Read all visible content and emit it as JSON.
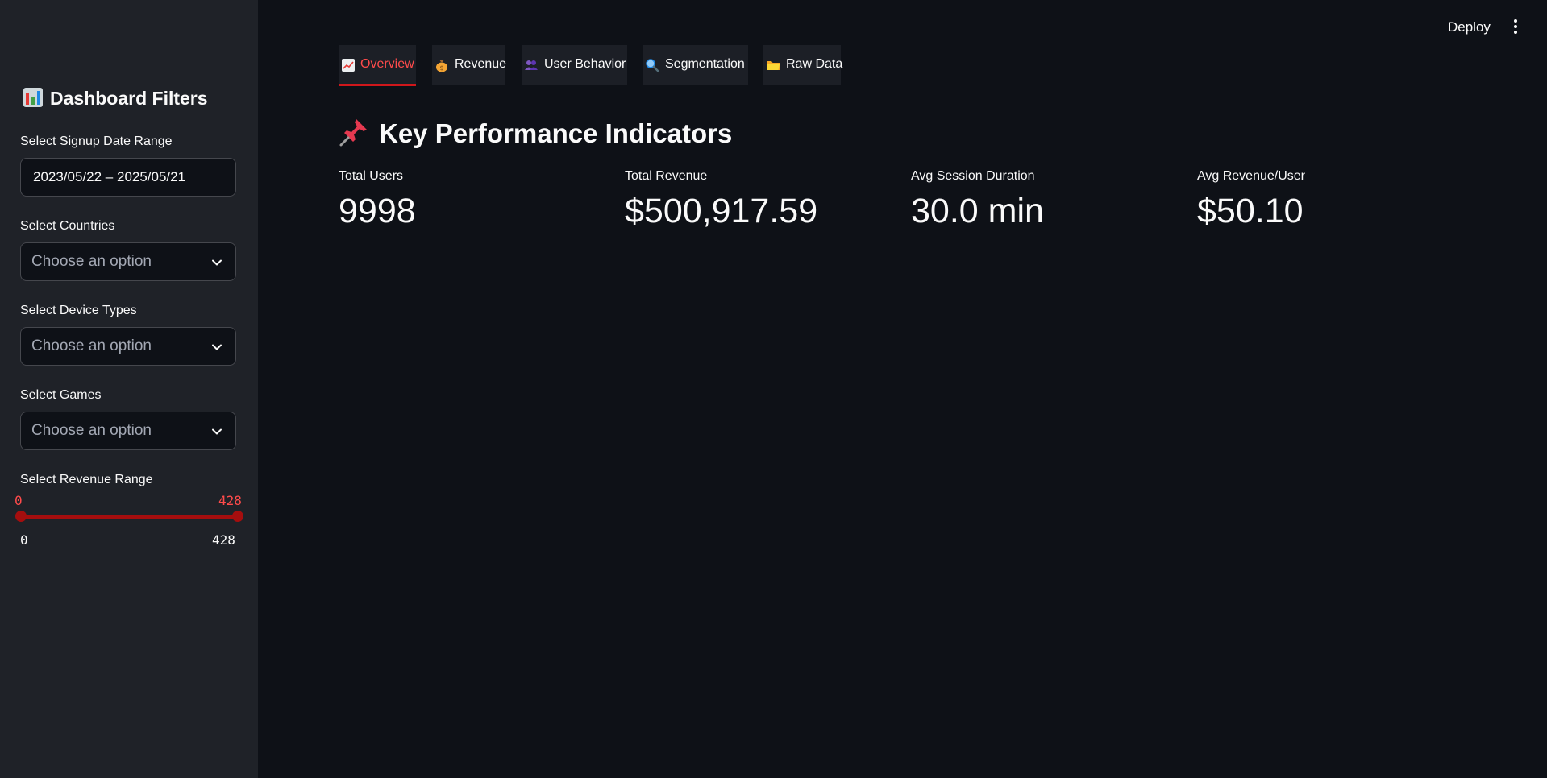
{
  "header": {
    "deploy_label": "Deploy"
  },
  "sidebar": {
    "title": "Dashboard Filters",
    "date_range": {
      "label": "Select Signup Date Range",
      "value": "2023/05/22 – 2025/05/21"
    },
    "countries": {
      "label": "Select Countries",
      "placeholder": "Choose an option"
    },
    "device_types": {
      "label": "Select Device Types",
      "placeholder": "Choose an option"
    },
    "games": {
      "label": "Select Games",
      "placeholder": "Choose an option"
    },
    "revenue_range": {
      "label": "Select Revenue Range",
      "selected_min": "0",
      "selected_max": "428",
      "min": "0",
      "max": "428"
    }
  },
  "tabs": [
    {
      "label": "Overview",
      "icon": "chart-increasing-icon",
      "active": true
    },
    {
      "label": "Revenue",
      "icon": "money-bag-icon",
      "active": false
    },
    {
      "label": "User Behavior",
      "icon": "users-icon",
      "active": false
    },
    {
      "label": "Segmentation",
      "icon": "magnifier-icon",
      "active": false
    },
    {
      "label": "Raw Data",
      "icon": "folder-icon",
      "active": false
    }
  ],
  "main": {
    "section_title": "Key Performance Indicators",
    "metrics": [
      {
        "label": "Total Users",
        "value": "9998"
      },
      {
        "label": "Total Revenue",
        "value": "$500,917.59"
      },
      {
        "label": "Avg Session Duration",
        "value": "30.0 min"
      },
      {
        "label": "Avg Revenue/User",
        "value": "$50.10"
      }
    ]
  },
  "colors": {
    "background": "#0e1117",
    "sidebar": "#1f2228",
    "accent": "#ff4b4b",
    "slider": "#a50e0e"
  }
}
